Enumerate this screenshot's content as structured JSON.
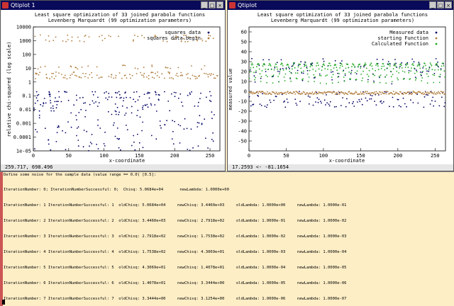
{
  "windows": [
    {
      "title": "Qtiplot 1",
      "statusbar": "259.717,  698.496",
      "chart_data": {
        "type": "scatter",
        "title": "Least square optimization of 33 joined parabola functions",
        "subtitle": "Levenberg Marquardt (99 optimization parameters)",
        "xlabel": "x-coordinate",
        "ylabel": "relative chi-squared (log scale)",
        "xlim": [
          0,
          264
        ],
        "ylim": [
          1e-05,
          10000
        ],
        "yscale": "log",
        "x_ticks": [
          "0",
          "50",
          "100",
          "150",
          "200",
          "250"
        ],
        "y_ticks": [
          "1e-05",
          "0.0001",
          "0.001",
          "0.01",
          "0.1",
          "1",
          "10",
          "100",
          "1000",
          "10000"
        ],
        "legend_position": "top-right",
        "legend": [
          "squares data",
          "squares data.begin"
        ],
        "series": [
          {
            "name": "squares data",
            "color": "#000066",
            "typical_range": [
              1e-05,
              0.2
            ]
          },
          {
            "name": "squares data.begin",
            "color": "#b07b3a",
            "typical_range": [
              1,
              3000
            ]
          }
        ]
      }
    },
    {
      "title": "Qtiplot",
      "statusbar": "17.2593 <-   -81.1654",
      "chart_data": {
        "type": "scatter",
        "title": "Least square optimization of 33 joined parabola functions",
        "subtitle": "Levenberg Marquardt (99 optimization parameters)",
        "xlabel": "x-coordinate",
        "ylabel": "measured value",
        "xlim": [
          0,
          264
        ],
        "ylim": [
          -60,
          65
        ],
        "x_ticks": [
          "0",
          "50",
          "100",
          "150",
          "200",
          "250"
        ],
        "y_ticks": [
          "-50",
          "-40",
          "-30",
          "-20",
          "-10",
          "0",
          "10",
          "20",
          "30",
          "40",
          "50",
          "60"
        ],
        "legend_position": "top-right",
        "legend": [
          "Measured data",
          "starting Function",
          "Calculated Function"
        ],
        "series": [
          {
            "name": "Measured data",
            "color": "#000066",
            "typical_range": [
              -20,
              32
            ]
          },
          {
            "name": "starting Function",
            "color": "#b07b3a",
            "typical_range": [
              -3,
              0
            ]
          },
          {
            "name": "Calculated Function",
            "color": "#22aa22",
            "typical_range": [
              8,
              28
            ]
          }
        ]
      }
    }
  ],
  "console": {
    "header": "Define some noise for the sample data (value range == 0.0) [0.5]:",
    "lines": [
      "IterationNumber: 0; IterationNumberSuccessful: 0;  Chisq: 5.0684e+04       newLambda: 1.0000e+00",
      "IterationNumber: 1 IterationNumberSuccessful: 1  oldChisq: 5.0684e+04     newChisq: 3.4460e+03     oldLambda: 1.0000e+00     newLambda: 1.0000e-01",
      "IterationNumber: 2 IterationNumberSuccessful: 2  oldChisq: 3.4460e+03     newChisq: 2.7918e+02     oldLambda: 1.0000e-01     newLambda: 1.0000e-02",
      "IterationNumber: 3 IterationNumberSuccessful: 3  oldChisq: 2.7918e+02     newChisq: 1.7538e+02     oldLambda: 1.0000e-02     newLambda: 1.0000e-03",
      "IterationNumber: 4 IterationNumberSuccessful: 4  oldChisq: 1.7538e+02     newChisq: 4.3069e+01     oldLambda: 1.0000e-03     newLambda: 1.0000e-04",
      "IterationNumber: 5 IterationNumberSuccessful: 5  oldChisq: 4.3069e+01     newChisq: 1.4078e+01     oldLambda: 1.0000e-04     newLambda: 1.0000e-05",
      "IterationNumber: 6 IterationNumberSuccessful: 6  oldChisq: 1.4078e+01     newChisq: 3.3444e+00     oldLambda: 1.0000e-05     newLambda: 1.0000e-06",
      "IterationNumber: 7 IterationNumberSuccessful: 7  oldChisq: 3.3444e+00     newChisq: 3.1254e+00     oldLambda: 1.0000e-06     newLambda: 1.0000e-07"
    ]
  }
}
